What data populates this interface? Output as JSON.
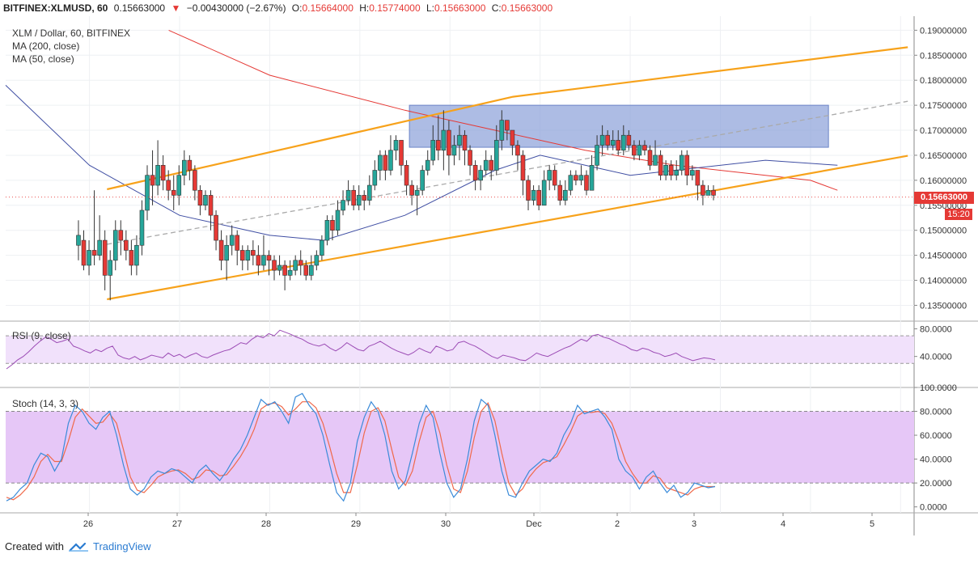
{
  "header": {
    "symbol": "BITFINEX:XLMUSD, 60",
    "last": "0.15663000",
    "arrow": "▼",
    "change": "−0.00430000 (−2.67%)",
    "open_label": "O:",
    "open": "0.15664000",
    "high_label": "H:",
    "high": "0.15774000",
    "low_label": "L:",
    "low": "0.15663000",
    "close_label": "C:",
    "close": "0.15663000"
  },
  "legend": {
    "title": "XLM / Dollar, 60, BITFINEX",
    "ma200": "MA (200, close)",
    "ma50": "MA (50, close)",
    "rsi": "RSI (9, close)",
    "stoch": "Stoch (14, 3, 3)"
  },
  "price_tag": "0.15663000",
  "time_tag": "15:20",
  "footer": {
    "created_with": "Created with",
    "brand": "TradingView"
  },
  "colors": {
    "up": "#26a69a",
    "down": "#e53935",
    "channel": "#f7a21b",
    "midline": "#aaaaaa",
    "ma200": "#e53935",
    "ma50": "#3f4ea3",
    "zone": "#8a9fd8",
    "rsi_line": "#9c4cb5",
    "rsi_band": "#f1e1fb",
    "stoch_k": "#3b8bd9",
    "stoch_d": "#f0694a",
    "stoch_band": "#e6c7f7"
  },
  "chart_data": [
    {
      "type": "candlestick",
      "title": "XLM / Dollar, 60, BITFINEX",
      "x_ticks": [
        "26",
        "27",
        "28",
        "29",
        "30",
        "Dec",
        "2",
        "3",
        "4",
        "5"
      ],
      "y_ticks": [
        "0.19000000",
        "0.18500000",
        "0.18000000",
        "0.17500000",
        "0.17000000",
        "0.16500000",
        "0.16000000",
        "0.15500000",
        "0.15000000",
        "0.14500000",
        "0.14000000",
        "0.13500000"
      ],
      "ylim": [
        0.132,
        0.192
      ],
      "xlim_days": [
        -0.93,
        9.15
      ],
      "candles": [
        [
          0.147,
          0.149,
          0.152,
          0.144
        ],
        [
          0.148,
          0.143,
          0.15,
          0.142
        ],
        [
          0.143,
          0.146,
          0.148,
          0.141
        ],
        [
          0.146,
          0.145,
          0.158,
          0.143
        ],
        [
          0.145,
          0.148,
          0.153,
          0.144
        ],
        [
          0.148,
          0.141,
          0.15,
          0.138
        ],
        [
          0.141,
          0.144,
          0.146,
          0.136
        ],
        [
          0.144,
          0.15,
          0.152,
          0.142
        ],
        [
          0.15,
          0.148,
          0.152,
          0.145
        ],
        [
          0.148,
          0.146,
          0.15,
          0.144
        ],
        [
          0.146,
          0.143,
          0.148,
          0.141
        ],
        [
          0.143,
          0.147,
          0.149,
          0.141
        ],
        [
          0.147,
          0.154,
          0.156,
          0.145
        ],
        [
          0.154,
          0.161,
          0.163,
          0.152
        ],
        [
          0.161,
          0.159,
          0.166,
          0.155
        ],
        [
          0.159,
          0.163,
          0.168,
          0.157
        ],
        [
          0.163,
          0.16,
          0.165,
          0.158
        ],
        [
          0.16,
          0.158,
          0.162,
          0.156
        ],
        [
          0.158,
          0.157,
          0.161,
          0.154
        ],
        [
          0.157,
          0.161,
          0.163,
          0.155
        ],
        [
          0.161,
          0.164,
          0.166,
          0.159
        ],
        [
          0.164,
          0.162,
          0.165,
          0.16
        ],
        [
          0.162,
          0.158,
          0.163,
          0.156
        ],
        [
          0.158,
          0.155,
          0.159,
          0.153
        ],
        [
          0.155,
          0.157,
          0.158,
          0.154
        ],
        [
          0.157,
          0.153,
          0.158,
          0.15
        ],
        [
          0.153,
          0.148,
          0.154,
          0.146
        ],
        [
          0.148,
          0.144,
          0.15,
          0.142
        ],
        [
          0.144,
          0.147,
          0.149,
          0.14
        ],
        [
          0.147,
          0.149,
          0.151,
          0.145
        ],
        [
          0.149,
          0.146,
          0.15,
          0.143
        ],
        [
          0.146,
          0.144,
          0.147,
          0.142
        ],
        [
          0.144,
          0.146,
          0.147,
          0.142
        ],
        [
          0.146,
          0.145,
          0.148,
          0.143
        ],
        [
          0.145,
          0.143,
          0.147,
          0.141
        ],
        [
          0.143,
          0.145,
          0.149,
          0.142
        ],
        [
          0.145,
          0.144,
          0.146,
          0.141
        ],
        [
          0.144,
          0.142,
          0.145,
          0.14
        ],
        [
          0.142,
          0.143,
          0.145,
          0.141
        ],
        [
          0.143,
          0.141,
          0.144,
          0.138
        ],
        [
          0.141,
          0.142,
          0.144,
          0.14
        ],
        [
          0.142,
          0.144,
          0.145,
          0.141
        ],
        [
          0.144,
          0.143,
          0.146,
          0.141
        ],
        [
          0.143,
          0.141,
          0.144,
          0.14
        ],
        [
          0.141,
          0.143,
          0.145,
          0.14
        ],
        [
          0.143,
          0.145,
          0.146,
          0.142
        ],
        [
          0.145,
          0.148,
          0.149,
          0.144
        ],
        [
          0.148,
          0.152,
          0.153,
          0.147
        ],
        [
          0.152,
          0.15,
          0.153,
          0.148
        ],
        [
          0.15,
          0.154,
          0.156,
          0.149
        ],
        [
          0.154,
          0.156,
          0.158,
          0.153
        ],
        [
          0.156,
          0.158,
          0.16,
          0.155
        ],
        [
          0.158,
          0.155,
          0.159,
          0.154
        ],
        [
          0.155,
          0.157,
          0.159,
          0.154
        ],
        [
          0.157,
          0.156,
          0.158,
          0.154
        ],
        [
          0.156,
          0.159,
          0.161,
          0.155
        ],
        [
          0.159,
          0.162,
          0.164,
          0.158
        ],
        [
          0.162,
          0.165,
          0.166,
          0.16
        ],
        [
          0.165,
          0.162,
          0.166,
          0.16
        ],
        [
          0.162,
          0.166,
          0.169,
          0.161
        ],
        [
          0.166,
          0.168,
          0.169,
          0.164
        ],
        [
          0.168,
          0.163,
          0.168,
          0.161
        ],
        [
          0.163,
          0.159,
          0.164,
          0.157
        ],
        [
          0.159,
          0.157,
          0.16,
          0.155
        ],
        [
          0.157,
          0.158,
          0.159,
          0.153
        ],
        [
          0.158,
          0.162,
          0.163,
          0.157
        ],
        [
          0.162,
          0.164,
          0.166,
          0.161
        ],
        [
          0.164,
          0.168,
          0.171,
          0.163
        ],
        [
          0.168,
          0.166,
          0.173,
          0.164
        ],
        [
          0.166,
          0.17,
          0.174,
          0.162
        ],
        [
          0.17,
          0.165,
          0.172,
          0.161
        ],
        [
          0.165,
          0.167,
          0.169,
          0.163
        ],
        [
          0.167,
          0.169,
          0.171,
          0.164
        ],
        [
          0.169,
          0.166,
          0.17,
          0.163
        ],
        [
          0.166,
          0.163,
          0.167,
          0.161
        ],
        [
          0.163,
          0.16,
          0.164,
          0.158
        ],
        [
          0.16,
          0.162,
          0.163,
          0.158
        ],
        [
          0.162,
          0.164,
          0.166,
          0.161
        ],
        [
          0.164,
          0.162,
          0.165,
          0.16
        ],
        [
          0.162,
          0.168,
          0.171,
          0.161
        ],
        [
          0.168,
          0.172,
          0.174,
          0.166
        ],
        [
          0.172,
          0.17,
          0.172,
          0.168
        ],
        [
          0.17,
          0.167,
          0.17,
          0.165
        ],
        [
          0.167,
          0.165,
          0.168,
          0.162
        ],
        [
          0.165,
          0.16,
          0.166,
          0.157
        ],
        [
          0.16,
          0.156,
          0.161,
          0.154
        ],
        [
          0.156,
          0.158,
          0.159,
          0.155
        ],
        [
          0.158,
          0.155,
          0.159,
          0.154
        ],
        [
          0.155,
          0.16,
          0.162,
          0.155
        ],
        [
          0.16,
          0.162,
          0.163,
          0.158
        ],
        [
          0.162,
          0.159,
          0.163,
          0.158
        ],
        [
          0.159,
          0.156,
          0.16,
          0.155
        ],
        [
          0.156,
          0.158,
          0.16,
          0.155
        ],
        [
          0.158,
          0.161,
          0.162,
          0.157
        ],
        [
          0.161,
          0.16,
          0.162,
          0.159
        ],
        [
          0.16,
          0.161,
          0.163,
          0.159
        ],
        [
          0.161,
          0.158,
          0.162,
          0.157
        ],
        [
          0.158,
          0.163,
          0.165,
          0.158
        ],
        [
          0.163,
          0.167,
          0.169,
          0.162
        ],
        [
          0.167,
          0.169,
          0.171,
          0.165
        ],
        [
          0.169,
          0.167,
          0.17,
          0.166
        ],
        [
          0.167,
          0.168,
          0.17,
          0.166
        ],
        [
          0.168,
          0.166,
          0.17,
          0.165
        ],
        [
          0.166,
          0.169,
          0.171,
          0.165
        ],
        [
          0.169,
          0.167,
          0.17,
          0.166
        ],
        [
          0.167,
          0.165,
          0.168,
          0.164
        ],
        [
          0.165,
          0.167,
          0.168,
          0.164
        ],
        [
          0.167,
          0.166,
          0.168,
          0.165
        ],
        [
          0.166,
          0.163,
          0.167,
          0.162
        ],
        [
          0.163,
          0.165,
          0.168,
          0.163
        ],
        [
          0.165,
          0.161,
          0.166,
          0.16
        ],
        [
          0.161,
          0.163,
          0.164,
          0.16
        ],
        [
          0.163,
          0.161,
          0.164,
          0.16
        ],
        [
          0.161,
          0.162,
          0.164,
          0.16
        ],
        [
          0.162,
          0.165,
          0.166,
          0.161
        ],
        [
          0.165,
          0.161,
          0.166,
          0.159
        ],
        [
          0.161,
          0.162,
          0.163,
          0.16
        ],
        [
          0.162,
          0.159,
          0.162,
          0.156
        ],
        [
          0.159,
          0.157,
          0.16,
          0.155
        ],
        [
          0.157,
          0.158,
          0.159,
          0.157
        ],
        [
          0.158,
          0.157,
          0.159,
          0.156
        ]
      ],
      "channel_upper": [
        [
          0.195,
          0.1582
        ],
        [
          4.7,
          0.1767
        ],
        [
          9.08,
          0.1866
        ]
      ],
      "channel_lower": [
        [
          0.195,
          0.1362
        ],
        [
          9.08,
          0.1649
        ]
      ],
      "mid_line": [
        [
          0.195,
          0.1472
        ],
        [
          9.08,
          0.1758
        ]
      ],
      "zone": {
        "x0": 3.55,
        "x1": 8.2,
        "y0": 0.1666,
        "y1": 0.175
      },
      "ma200": [
        [
          0.88,
          0.19
        ],
        [
          2.0,
          0.181
        ],
        [
          3.5,
          0.174
        ],
        [
          4.5,
          0.17
        ],
        [
          5.5,
          0.166
        ],
        [
          6.5,
          0.163
        ],
        [
          7.5,
          0.161
        ],
        [
          8.0,
          0.16
        ],
        [
          8.3,
          0.158
        ]
      ],
      "ma50": [
        [
          -0.93,
          0.179
        ],
        [
          0.0,
          0.163
        ],
        [
          1.0,
          0.153
        ],
        [
          2.0,
          0.149
        ],
        [
          2.6,
          0.148
        ],
        [
          3.5,
          0.153
        ],
        [
          4.5,
          0.162
        ],
        [
          5.0,
          0.165
        ],
        [
          5.5,
          0.163
        ],
        [
          6.0,
          0.161
        ],
        [
          6.5,
          0.162
        ],
        [
          7.5,
          0.164
        ],
        [
          8.3,
          0.163
        ]
      ]
    },
    {
      "type": "line",
      "title": "RSI (9, close)",
      "y_ticks": [
        "80.0000",
        "40.0000"
      ],
      "ylim": [
        20,
        80
      ],
      "band": [
        70,
        30
      ],
      "values": [
        22,
        28,
        35,
        40,
        47,
        55,
        62,
        68,
        65,
        60,
        62,
        65,
        55,
        52,
        48,
        45,
        50,
        47,
        52,
        55,
        42,
        38,
        36,
        40,
        35,
        38,
        42,
        40,
        38,
        45,
        40,
        43,
        38,
        42,
        45,
        40,
        38,
        42,
        45,
        48,
        50,
        55,
        60,
        58,
        65,
        70,
        67,
        73,
        70,
        78,
        75,
        72,
        68,
        65,
        60,
        57,
        55,
        58,
        52,
        48,
        53,
        60,
        55,
        50,
        48,
        55,
        58,
        62,
        57,
        52,
        48,
        45,
        42,
        46,
        52,
        48,
        45,
        55,
        52,
        48,
        50,
        60,
        62,
        58,
        55,
        50,
        45,
        40,
        37,
        42,
        40,
        38,
        35,
        34,
        39,
        45,
        42,
        40,
        44,
        48,
        52,
        55,
        60,
        65,
        62,
        70,
        72,
        68,
        66,
        62,
        58,
        55,
        50,
        48,
        52,
        50,
        46,
        44,
        40,
        42,
        45,
        40,
        37,
        34,
        36,
        38,
        37,
        35
      ]
    },
    {
      "type": "line",
      "title": "Stoch (14, 3, 3)",
      "y_ticks": [
        "100.0000",
        "80.0000",
        "60.0000",
        "40.0000",
        "20.0000",
        "0.0000"
      ],
      "ylim": [
        -5,
        100
      ],
      "band": [
        80,
        20
      ],
      "series": [
        {
          "values": [
            5,
            8,
            15,
            20,
            35,
            45,
            42,
            30,
            40,
            70,
            85,
            80,
            70,
            65,
            75,
            80,
            60,
            35,
            15,
            10,
            15,
            25,
            30,
            28,
            32,
            30,
            25,
            20,
            30,
            35,
            28,
            22,
            30,
            40,
            48,
            60,
            75,
            90,
            85,
            88,
            80,
            70,
            92,
            95,
            85,
            78,
            60,
            35,
            12,
            5,
            20,
            55,
            75,
            88,
            80,
            60,
            30,
            15,
            22,
            45,
            70,
            85,
            75,
            45,
            20,
            8,
            15,
            40,
            72,
            90,
            85,
            60,
            30,
            10,
            8,
            20,
            30,
            35,
            40,
            38,
            45,
            60,
            70,
            85,
            78,
            80,
            82,
            75,
            65,
            40,
            30,
            25,
            15,
            25,
            30,
            20,
            12,
            18,
            8,
            12,
            20,
            18,
            16,
            17
          ]
        },
        {
          "values": [
            8,
            6,
            10,
            16,
            25,
            38,
            44,
            38,
            38,
            55,
            75,
            82,
            76,
            70,
            71,
            78,
            70,
            48,
            25,
            14,
            12,
            18,
            25,
            28,
            30,
            31,
            28,
            23,
            25,
            31,
            30,
            26,
            27,
            34,
            42,
            52,
            65,
            82,
            86,
            87,
            84,
            77,
            82,
            88,
            88,
            83,
            70,
            50,
            28,
            12,
            12,
            35,
            62,
            80,
            83,
            72,
            48,
            25,
            18,
            30,
            55,
            75,
            80,
            62,
            35,
            15,
            12,
            30,
            58,
            80,
            87,
            72,
            45,
            20,
            10,
            15,
            25,
            32,
            37,
            39,
            42,
            52,
            63,
            76,
            80,
            79,
            80,
            78,
            70,
            55,
            38,
            28,
            20,
            20,
            26,
            24,
            16,
            14,
            12,
            10,
            15,
            17,
            17,
            17
          ]
        }
      ]
    }
  ]
}
